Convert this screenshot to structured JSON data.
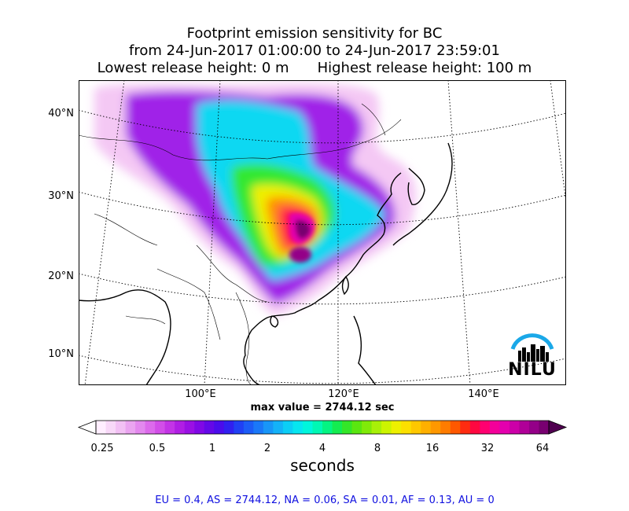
{
  "title": {
    "line1": "Footprint emission sensitivity for BC",
    "line2": "from 24-Jun-2017 01:00:00 to 24-Jun-2017 23:59:01",
    "line3_left": "Lowest release height: 0 m",
    "line3_right": "Highest release height: 100 m"
  },
  "map": {
    "lat_labels": [
      "40°N",
      "30°N",
      "20°N",
      "10°N"
    ],
    "lon_labels": [
      "100°E",
      "120°E",
      "140°E"
    ],
    "max_value_text": "max value = 2744.12 sec",
    "logo_text": "NILU"
  },
  "colorbar": {
    "tick_labels": [
      "0.25",
      "0.5",
      "1",
      "2",
      "4",
      "8",
      "16",
      "32",
      "64"
    ],
    "unit_label": "seconds",
    "colors": [
      "#ffeeff",
      "#f8d8f8",
      "#f2c0f4",
      "#eaa4f0",
      "#e388ee",
      "#dc6aeb",
      "#d24ee8",
      "#c334e6",
      "#b01ee4",
      "#9a10e4",
      "#8008e6",
      "#6408e8",
      "#4a0cec",
      "#3020f0",
      "#2040f4",
      "#1c5cf6",
      "#1a78f8",
      "#1896f8",
      "#14b2f8",
      "#0ccef6",
      "#06e6f0",
      "#00f6dc",
      "#00f8b4",
      "#04f482",
      "#14ec50",
      "#34e628",
      "#5ae610",
      "#80ea08",
      "#a8f008",
      "#ccf400",
      "#eef000",
      "#fce000",
      "#ffc800",
      "#ffb000",
      "#ff9800",
      "#ff7c00",
      "#ff5800",
      "#ff2c10",
      "#ff0840",
      "#ff0070",
      "#f4009a",
      "#e400ae",
      "#cc00a8",
      "#b00098",
      "#940088",
      "#780070"
    ]
  },
  "footer": {
    "text": "EU = 0.4,  AS = 2744.12,  NA = 0.06,  SA = 0.01,  AF = 0.13,  AU = 0"
  }
}
